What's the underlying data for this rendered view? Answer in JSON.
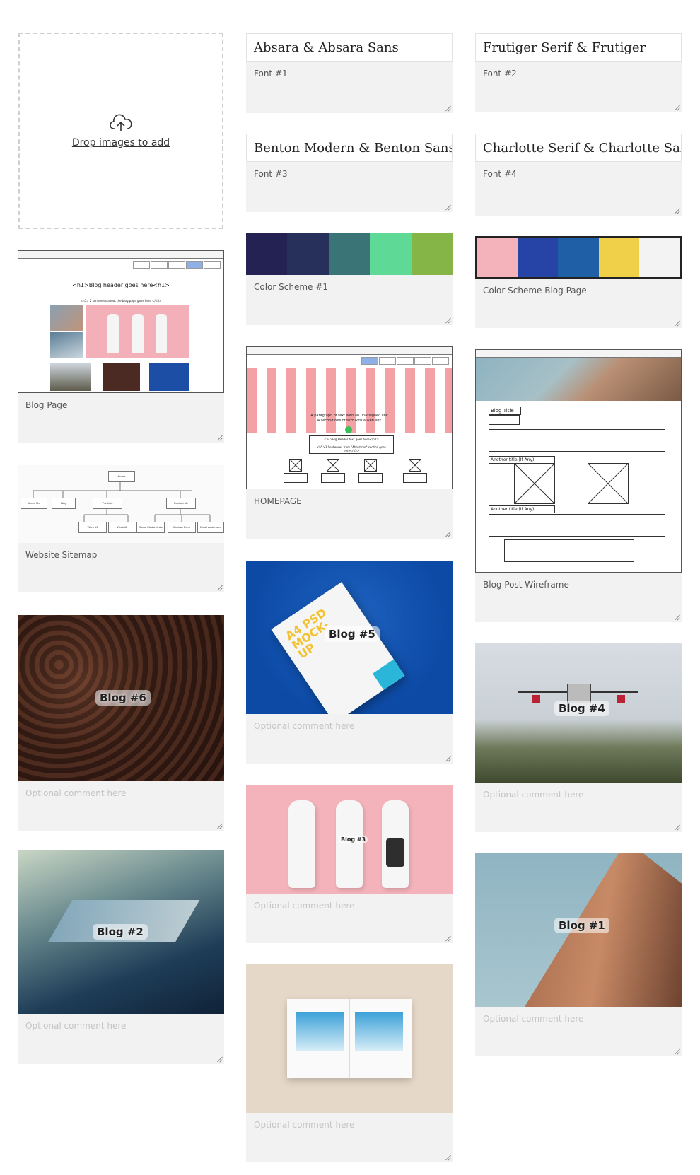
{
  "dropzone": {
    "label": "Drop images to add"
  },
  "fonts": [
    {
      "name": "Absara & Absara Sans",
      "comment": "Font #1"
    },
    {
      "name": "Frutiger Serif & Frutiger",
      "comment": "Font #2"
    },
    {
      "name": "Benton Modern & Benton Sans",
      "comment": "Font #3"
    },
    {
      "name": "Charlotte Serif & Charlotte Sans",
      "comment": "Font #4"
    }
  ],
  "color_schemes": [
    {
      "comment": "Color Scheme #1",
      "colors": [
        "#232253",
        "#26305a",
        "#3a7476",
        "#5ed996",
        "#85b547"
      ]
    },
    {
      "comment": "Color Scheme Blog Page",
      "colors": [
        "#f4b3ba",
        "#2644a6",
        "#1f5fa5",
        "#f0d049",
        "#f3f3f3"
      ]
    }
  ],
  "wireframes": {
    "blog_page": {
      "comment": "Blog Page",
      "header": "<h1>Blog header goes here<h1>",
      "subheader": "<h5> 2 sentences about the blog page goes here </h5>"
    },
    "homepage": {
      "comment": "HOMEPAGE",
      "para1": "A paragraph of text with an unassigned link",
      "para2": "A second row of text with a web link",
      "h4": "<h4>Big Header text goes here</h4>",
      "h5": "<h5>3 Sentences from \"About me\" section goes here</h5>"
    },
    "sitemap": {
      "comment": "Website Sitemap",
      "nodes": [
        "Home",
        "About Me",
        "Blog",
        "Portfolio",
        "Contact Me",
        "Work #1",
        "Work #2",
        "Social Media Links",
        "Contact Form",
        "Email Addresses"
      ]
    },
    "blog_post": {
      "comment": "Blog Post Wireframe",
      "blog_title": "Blog Title",
      "another_title_1": "Another title (If Any)",
      "another_title_2": "Another title (If Any)"
    }
  },
  "blog_images": [
    {
      "tag": "Blog #6",
      "comment": "Optional comment here",
      "subject": "coffee beans"
    },
    {
      "tag": "Blog #2",
      "comment": "Optional comment here",
      "subject": "fjord landscape"
    },
    {
      "tag": "Blog #5",
      "comment": "Optional comment here",
      "subject": "A4 PSD mockup paper",
      "paper_text": "A4 PSD MOCK-UP"
    },
    {
      "tag": "Blog #3",
      "comment": "Optional comment here",
      "subject": "ceramic bottles"
    },
    {
      "tag": "",
      "comment": "Optional comment here",
      "subject": "open magazine"
    },
    {
      "tag": "Blog #4",
      "comment": "Optional comment here",
      "subject": "drone"
    },
    {
      "tag": "Blog #1",
      "comment": "Optional comment here",
      "subject": "flatiron building"
    }
  ]
}
